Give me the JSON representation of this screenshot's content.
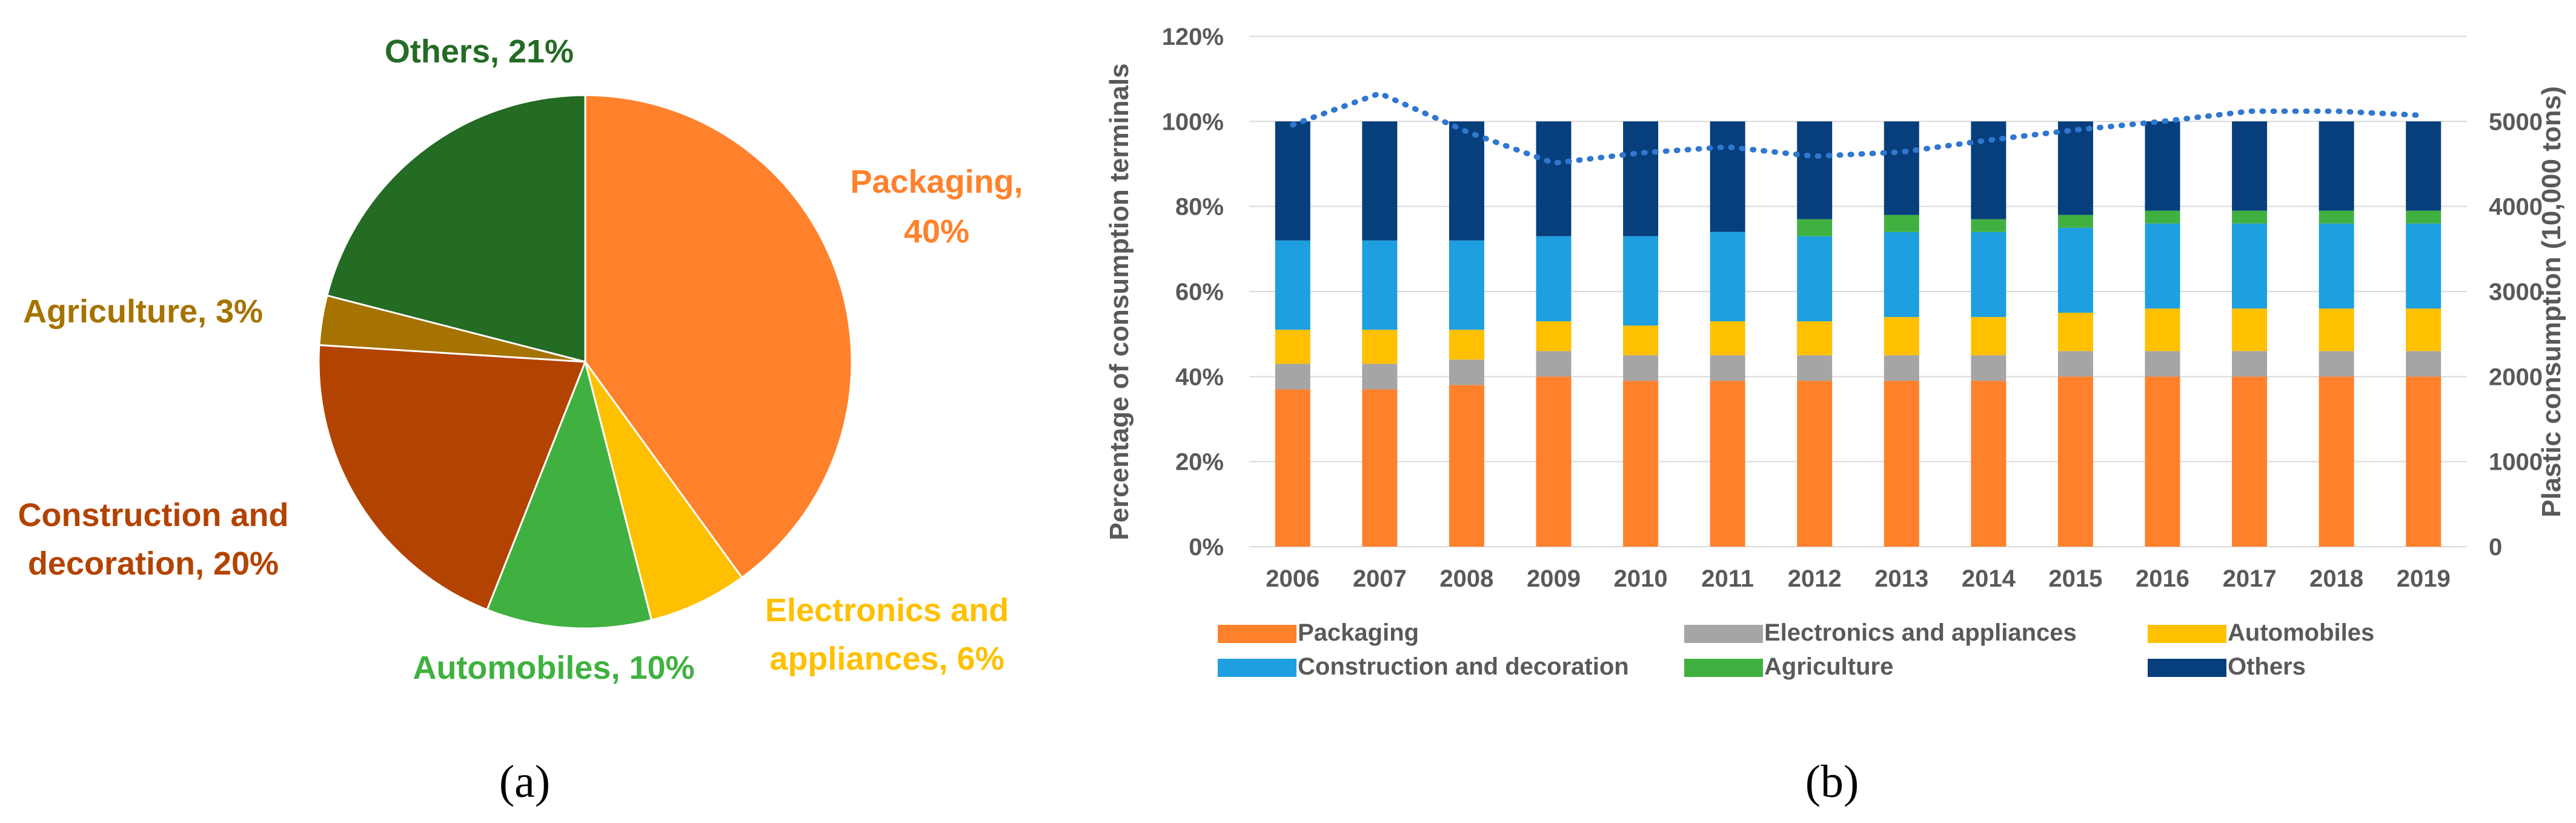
{
  "colors": {
    "Packaging": "#FF812C",
    "Electronics and appliances": "#A5A5A5",
    "Automobiles": "#FFC000",
    "Construction and decoration": "#1E9FE0",
    "Agriculture": "#40B140",
    "Others": "#073F7C",
    "trend": "#2F77D0",
    "pie_Electronics and appliances": "#FFC000",
    "pie_Automobiles": "#40B140",
    "pie_Construction and decoration": "#B34300",
    "pie_Agriculture": "#A67300",
    "pie_Others": "#246B24",
    "pie_Packaging": "#FF812C"
  },
  "chart_data": [
    {
      "type": "pie",
      "caption": "(a)",
      "slices": [
        {
          "name": "Packaging",
          "value": 40,
          "label_line1": "Packaging,",
          "label_line2": "40%"
        },
        {
          "name": "Electronics and appliances",
          "value": 6,
          "label_line1": "Electronics and",
          "label_line2": "appliances, 6%"
        },
        {
          "name": "Automobiles",
          "value": 10,
          "label_line1": "Automobiles, 10%",
          "label_line2": ""
        },
        {
          "name": "Construction and decoration",
          "value": 20,
          "label_line1": "Construction and",
          "label_line2": "decoration, 20%"
        },
        {
          "name": "Agriculture",
          "value": 3,
          "label_line1": "Agriculture, 3%",
          "label_line2": ""
        },
        {
          "name": "Others",
          "value": 21,
          "label_line1": "Others, 21%",
          "label_line2": ""
        }
      ]
    },
    {
      "type": "bar",
      "stacked": true,
      "caption": "(b)",
      "categories": [
        "2006",
        "2007",
        "2008",
        "2009",
        "2010",
        "2011",
        "2012",
        "2013",
        "2014",
        "2015",
        "2016",
        "2017",
        "2018",
        "2019"
      ],
      "ylabel": "Percentage of consumption terminals",
      "y2label": "Plastic consumption (10,000 tons)",
      "ylim": [
        0,
        1.2
      ],
      "yticks": [
        "0%",
        "20%",
        "40%",
        "60%",
        "80%",
        "100%",
        "120%"
      ],
      "y2lim": [
        0,
        6000
      ],
      "y2ticks": [
        "0",
        "1000",
        "2000",
        "3000",
        "4000",
        "5000"
      ],
      "series": [
        {
          "name": "Packaging",
          "values": [
            37,
            37,
            38,
            40,
            39,
            39,
            39,
            39,
            39,
            40,
            40,
            40,
            40,
            40
          ]
        },
        {
          "name": "Electronics and appliances",
          "values": [
            6,
            6,
            6,
            6,
            6,
            6,
            6,
            6,
            6,
            6,
            6,
            6,
            6,
            6
          ]
        },
        {
          "name": "Automobiles",
          "values": [
            8,
            8,
            7,
            7,
            7,
            8,
            8,
            9,
            9,
            9,
            10,
            10,
            10,
            10
          ]
        },
        {
          "name": "Construction and decoration",
          "values": [
            21,
            21,
            21,
            20,
            21,
            21,
            20,
            20,
            20,
            20,
            20,
            20,
            20,
            20
          ]
        },
        {
          "name": "Agriculture",
          "values": [
            0,
            0,
            0,
            0,
            0,
            0,
            4,
            4,
            3,
            3,
            3,
            3,
            3,
            3
          ]
        },
        {
          "name": "Others",
          "values": [
            28,
            28,
            28,
            27,
            27,
            26,
            23,
            22,
            23,
            22,
            21,
            21,
            21,
            21
          ]
        }
      ],
      "line_series": {
        "name": "Plastic consumption",
        "values": [
          4960,
          5330,
          4880,
          4510,
          4630,
          4700,
          4590,
          4640,
          4780,
          4900,
          5000,
          5120,
          5120,
          5070
        ]
      },
      "legend": [
        "Packaging",
        "Electronics and appliances",
        "Automobiles",
        "Construction and decoration",
        "Agriculture",
        "Others"
      ]
    }
  ]
}
